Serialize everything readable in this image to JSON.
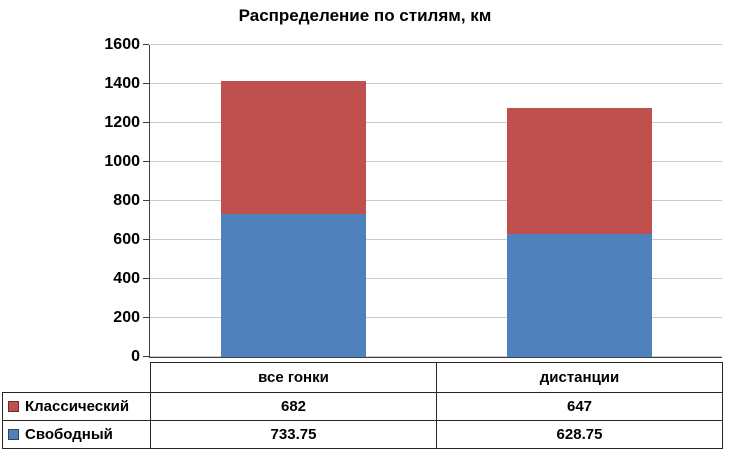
{
  "title": "Распределение по стилям, км",
  "chart_data": {
    "type": "bar",
    "stacked": true,
    "title": "Распределение по стилям, км",
    "categories": [
      "все гонки",
      "дистанции"
    ],
    "series": [
      {
        "name": "Классический",
        "color": "#C0504D",
        "values": [
          682,
          647
        ]
      },
      {
        "name": "Свободный",
        "color": "#4F81BD",
        "values": [
          733.75,
          628.75
        ]
      }
    ],
    "ylim": [
      0,
      1600
    ],
    "ytick_step": 200,
    "grid": true,
    "legend_position": "data-table-left",
    "gridline_color": "#C9C9C9",
    "axis_color": "#404040"
  }
}
